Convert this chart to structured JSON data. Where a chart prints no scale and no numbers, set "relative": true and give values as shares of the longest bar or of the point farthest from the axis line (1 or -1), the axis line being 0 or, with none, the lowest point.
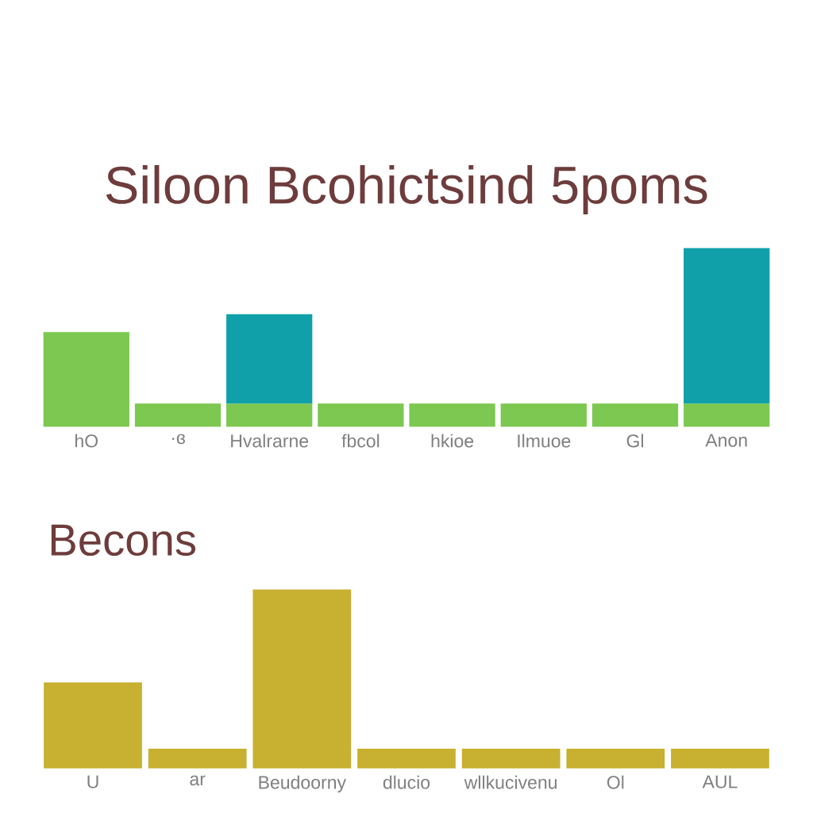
{
  "chart_data": [
    {
      "type": "bar",
      "title": "Siloon Bcohictsind 5poms",
      "relative": true,
      "stacked": true,
      "categories": [
        "hO",
        "·ɞ",
        "Hvalrarne",
        "fbcol",
        "hkioe",
        "Ilmuoe",
        "Gl",
        "Anon"
      ],
      "series": [
        {
          "color": "#7cc850",
          "values": [
            0.53,
            0.13,
            0.13,
            0.13,
            0.13,
            0.13,
            0.13,
            0.13
          ]
        },
        {
          "color": "#0fa0aa",
          "values": [
            null,
            null,
            0.5,
            null,
            null,
            null,
            null,
            0.87
          ]
        }
      ]
    },
    {
      "type": "bar",
      "title": "Becons",
      "relative": true,
      "categories": [
        "U",
        "ar",
        "Beudoorny",
        "dlucio",
        "wllkucivenu",
        "Ol",
        "AUL"
      ],
      "series": [
        {
          "color": "#c8b030",
          "values": [
            0.48,
            0.11,
            1.0,
            0.11,
            0.11,
            0.11,
            0.11
          ]
        }
      ]
    }
  ]
}
